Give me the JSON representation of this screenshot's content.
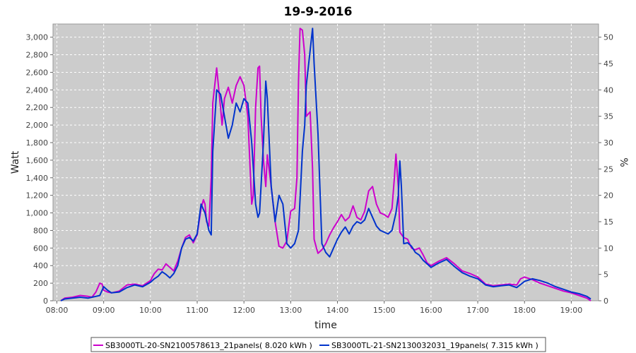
{
  "chart_data": {
    "type": "line",
    "title": "19-9-2016",
    "xlabel": "time",
    "ylabel": "Watt",
    "y2label": "%",
    "xlim": [
      "07:55",
      "19:35"
    ],
    "ylim": [
      0,
      3150
    ],
    "y2lim": [
      0,
      52.5
    ],
    "x_ticks": [
      "08:00",
      "09:00",
      "10:00",
      "11:00",
      "12:00",
      "13:00",
      "14:00",
      "15:00",
      "16:00",
      "17:00",
      "18:00",
      "19:00"
    ],
    "y_ticks": [
      "0",
      "200",
      "400",
      "600",
      "800",
      "1,000",
      "1,200",
      "1,400",
      "1,600",
      "1,800",
      "2,000",
      "2,200",
      "2,400",
      "2,600",
      "2,800",
      "3,000"
    ],
    "y2_ticks": [
      "0",
      "5",
      "10",
      "15",
      "20",
      "25",
      "30",
      "35",
      "40",
      "45",
      "50"
    ],
    "grid": true,
    "legend_position": "bottom",
    "series": [
      {
        "name": "SB3000TL-20-SN2100578613_21panels( 8.020 kWh )",
        "color": "#cc00cc",
        "x": [
          "08:05",
          "08:10",
          "08:20",
          "08:30",
          "08:40",
          "08:45",
          "08:50",
          "08:55",
          "08:58",
          "09:00",
          "09:05",
          "09:10",
          "09:20",
          "09:30",
          "09:40",
          "09:50",
          "10:00",
          "10:05",
          "10:10",
          "10:15",
          "10:20",
          "10:25",
          "10:30",
          "10:35",
          "10:40",
          "10:45",
          "10:50",
          "10:55",
          "11:00",
          "11:05",
          "11:08",
          "11:10",
          "11:12",
          "11:15",
          "11:18",
          "11:20",
          "11:25",
          "11:30",
          "11:32",
          "11:35",
          "11:40",
          "11:45",
          "11:50",
          "11:55",
          "12:00",
          "12:05",
          "12:08",
          "12:10",
          "12:12",
          "12:15",
          "12:18",
          "12:20",
          "12:22",
          "12:25",
          "12:28",
          "12:30",
          "12:35",
          "12:40",
          "12:45",
          "12:50",
          "12:55",
          "13:00",
          "13:05",
          "13:08",
          "13:10",
          "13:12",
          "13:15",
          "13:18",
          "13:20",
          "13:25",
          "13:28",
          "13:30",
          "13:33",
          "13:35",
          "13:40",
          "13:45",
          "13:50",
          "13:55",
          "14:00",
          "14:05",
          "14:10",
          "14:15",
          "14:20",
          "14:25",
          "14:30",
          "14:35",
          "14:40",
          "14:45",
          "14:50",
          "14:55",
          "15:00",
          "15:05",
          "15:10",
          "15:13",
          "15:15",
          "15:18",
          "15:20",
          "15:25",
          "15:30",
          "15:35",
          "15:40",
          "15:45",
          "15:50",
          "15:55",
          "16:00",
          "16:10",
          "16:20",
          "16:30",
          "16:40",
          "16:50",
          "17:00",
          "17:10",
          "17:20",
          "17:30",
          "17:40",
          "17:50",
          "17:55",
          "18:00",
          "18:10",
          "18:20",
          "18:30",
          "18:40",
          "18:50",
          "19:00",
          "19:10",
          "19:20",
          "19:25"
        ],
        "values": [
          0,
          30,
          40,
          60,
          50,
          40,
          100,
          200,
          190,
          120,
          100,
          90,
          110,
          180,
          190,
          170,
          230,
          310,
          360,
          350,
          420,
          380,
          340,
          450,
          600,
          720,
          750,
          660,
          750,
          1050,
          1150,
          1100,
          900,
          850,
          1400,
          2250,
          2650,
          2200,
          2000,
          2300,
          2430,
          2250,
          2450,
          2550,
          2450,
          2100,
          1500,
          1100,
          1200,
          2200,
          2650,
          2670,
          2100,
          1600,
          1300,
          1660,
          1300,
          900,
          620,
          600,
          680,
          1020,
          1050,
          1400,
          2500,
          3100,
          3080,
          2800,
          2100,
          2150,
          1500,
          700,
          600,
          540,
          580,
          650,
          750,
          830,
          900,
          980,
          910,
          950,
          1080,
          950,
          920,
          1020,
          1250,
          1300,
          1100,
          1000,
          980,
          950,
          1050,
          1400,
          1670,
          1300,
          780,
          720,
          700,
          600,
          580,
          600,
          520,
          430,
          400,
          450,
          490,
          420,
          340,
          310,
          270,
          190,
          170,
          180,
          190,
          180,
          250,
          270,
          240,
          200,
          170,
          140,
          110,
          90,
          60,
          30,
          0
        ]
      },
      {
        "name": "SB3000TL-21-SN2130032031_19panels( 7.315 kWh )",
        "color": "#0033cc",
        "x": [
          "08:05",
          "08:10",
          "08:20",
          "08:30",
          "08:40",
          "08:45",
          "08:50",
          "08:55",
          "09:00",
          "09:05",
          "09:10",
          "09:20",
          "09:30",
          "09:40",
          "09:50",
          "10:00",
          "10:05",
          "10:10",
          "10:15",
          "10:20",
          "10:25",
          "10:30",
          "10:35",
          "10:40",
          "10:45",
          "10:50",
          "10:55",
          "11:00",
          "11:05",
          "11:10",
          "11:15",
          "11:18",
          "11:20",
          "11:25",
          "11:30",
          "11:35",
          "11:40",
          "11:45",
          "11:50",
          "11:55",
          "12:00",
          "12:05",
          "12:10",
          "12:15",
          "12:18",
          "12:20",
          "12:25",
          "12:28",
          "12:30",
          "12:35",
          "12:40",
          "12:45",
          "12:50",
          "12:55",
          "13:00",
          "13:05",
          "13:10",
          "13:15",
          "13:18",
          "13:20",
          "13:25",
          "13:28",
          "13:30",
          "13:35",
          "13:40",
          "13:45",
          "13:50",
          "13:55",
          "14:00",
          "14:05",
          "14:10",
          "14:15",
          "14:20",
          "14:25",
          "14:30",
          "14:35",
          "14:40",
          "14:45",
          "14:50",
          "14:55",
          "15:00",
          "15:05",
          "15:10",
          "15:15",
          "15:18",
          "15:20",
          "15:22",
          "15:25",
          "15:30",
          "15:35",
          "15:40",
          "15:45",
          "15:50",
          "15:55",
          "16:00",
          "16:10",
          "16:20",
          "16:30",
          "16:40",
          "16:50",
          "17:00",
          "17:10",
          "17:20",
          "17:30",
          "17:40",
          "17:50",
          "18:00",
          "18:10",
          "18:20",
          "18:30",
          "18:40",
          "18:50",
          "19:00",
          "19:10",
          "19:20",
          "19:25"
        ],
        "values": [
          0,
          20,
          30,
          40,
          30,
          40,
          50,
          60,
          160,
          120,
          90,
          100,
          150,
          180,
          160,
          210,
          250,
          280,
          330,
          300,
          260,
          310,
          400,
          600,
          700,
          720,
          680,
          760,
          1100,
          1000,
          800,
          750,
          1700,
          2400,
          2350,
          2100,
          1850,
          2000,
          2250,
          2150,
          2300,
          2250,
          1800,
          1100,
          950,
          1000,
          1800,
          2500,
          2300,
          1300,
          900,
          1200,
          1100,
          650,
          600,
          650,
          800,
          1700,
          2000,
          2450,
          2850,
          3100,
          2700,
          1900,
          650,
          550,
          500,
          600,
          700,
          780,
          840,
          760,
          850,
          900,
          880,
          920,
          1050,
          950,
          850,
          800,
          780,
          760,
          800,
          1000,
          1200,
          1590,
          1300,
          650,
          660,
          620,
          550,
          520,
          460,
          420,
          380,
          430,
          470,
          390,
          320,
          280,
          250,
          180,
          160,
          170,
          180,
          150,
          220,
          250,
          230,
          200,
          160,
          130,
          100,
          80,
          50,
          20
        ]
      }
    ]
  }
}
